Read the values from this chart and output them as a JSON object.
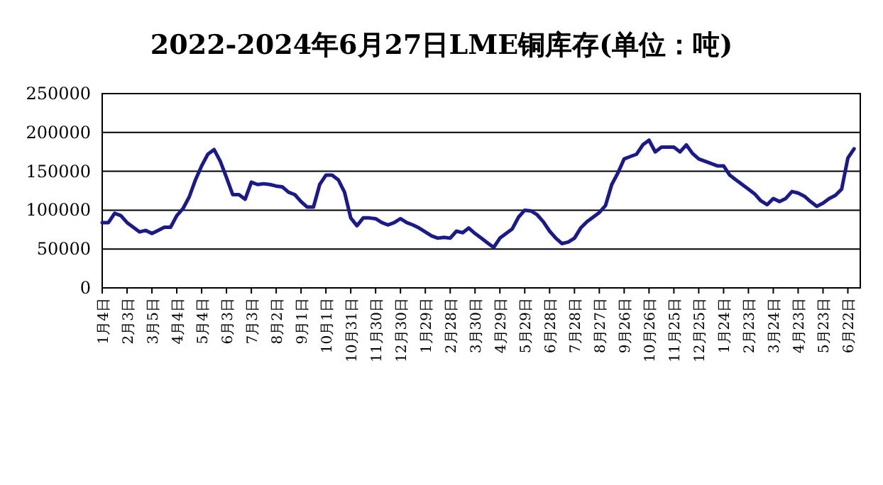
{
  "chart_data": {
    "type": "line",
    "title": "2022-2024年6月27日LME铜库存(单位：吨)",
    "categories": [
      "1月4日",
      null,
      null,
      null,
      "2月3日",
      null,
      null,
      null,
      "3月5日",
      null,
      null,
      null,
      "4月4日",
      null,
      null,
      null,
      "5月4日",
      null,
      null,
      null,
      "6月3日",
      null,
      null,
      null,
      "7月3日",
      null,
      null,
      null,
      "8月2日",
      null,
      null,
      null,
      "9月1日",
      null,
      null,
      null,
      "10月1日",
      null,
      null,
      null,
      "10月31日",
      null,
      null,
      null,
      "11月30日",
      null,
      null,
      null,
      "12月30日",
      null,
      null,
      null,
      "1月29日",
      null,
      null,
      null,
      "2月28日",
      null,
      null,
      null,
      "3月30日",
      null,
      null,
      null,
      "4月29日",
      null,
      null,
      null,
      "5月29日",
      null,
      null,
      null,
      "6月28日",
      null,
      null,
      null,
      "7月28日",
      null,
      null,
      null,
      "8月27日",
      null,
      null,
      null,
      "9月26日",
      null,
      null,
      null,
      "10月26日",
      null,
      null,
      null,
      "11月25日",
      null,
      null,
      null,
      "12月25日",
      null,
      null,
      null,
      "1月24日",
      null,
      null,
      null,
      "2月23日",
      null,
      null,
      null,
      "3月24日",
      null,
      null,
      null,
      "4月23日",
      null,
      null,
      null,
      "5月23日",
      null,
      null,
      null,
      "6月22日",
      null
    ],
    "series": [
      {
        "color": "#1a1a8c",
        "values": [
          84000,
          84000,
          96000,
          93000,
          84000,
          78000,
          72000,
          74000,
          70000,
          74000,
          78000,
          78000,
          93000,
          102000,
          117000,
          139000,
          157000,
          172000,
          178000,
          163000,
          142000,
          120000,
          120000,
          114000,
          136000,
          133000,
          134000,
          133000,
          131000,
          130000,
          123000,
          120000,
          111000,
          104000,
          104000,
          133000,
          145000,
          145000,
          139000,
          123000,
          90000,
          80000,
          90000,
          90000,
          89000,
          84000,
          81000,
          84000,
          89000,
          84000,
          81000,
          77000,
          72000,
          67000,
          64000,
          65000,
          64000,
          73000,
          71000,
          77000,
          70000,
          64000,
          58000,
          52000,
          64000,
          70000,
          76000,
          91000,
          100000,
          99000,
          94000,
          85000,
          73000,
          64000,
          57000,
          59000,
          64000,
          77000,
          85000,
          91000,
          97000,
          106000,
          133000,
          148000,
          166000,
          169000,
          172000,
          184000,
          190000,
          175000,
          181000,
          181000,
          181000,
          175000,
          184000,
          173000,
          166000,
          163000,
          160000,
          157000,
          157000,
          145000,
          139000,
          133000,
          127000,
          121000,
          112000,
          107000,
          115000,
          111000,
          115000,
          124000,
          122000,
          118000,
          111000,
          105000,
          109000,
          115000,
          119000,
          127000,
          167000,
          179000
        ]
      }
    ],
    "ylim": [
      0,
      250000
    ],
    "yticks": [
      0,
      50000,
      100000,
      150000,
      200000,
      250000
    ],
    "grid": "y",
    "line_style": "solid",
    "marker": "none"
  }
}
